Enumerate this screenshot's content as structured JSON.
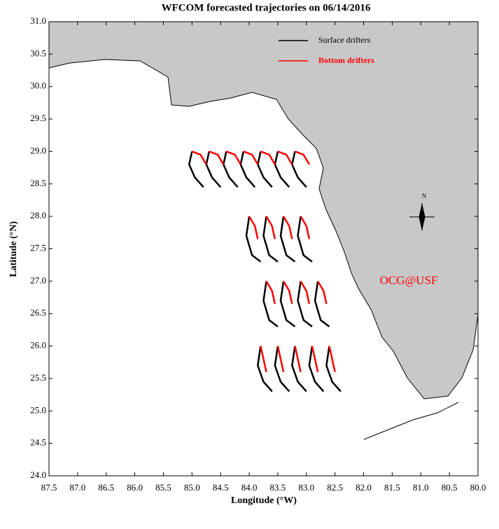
{
  "chart_data": {
    "type": "trajectory",
    "title": "WFCOM forecasted trajectories on 06/14/2016",
    "x_label": "Longitude (°W)",
    "y_label": "Latitude (°N)",
    "annotations": [
      "OCG@USF",
      "N"
    ],
    "xlim": [
      87.5,
      80.0
    ],
    "ylim": [
      24.0,
      31.0
    ],
    "xticks": [
      87.5,
      {
        "value": 87,
        "label": "87.0"
      },
      86.5,
      {
        "value": 86,
        "label": "86.0"
      },
      85.5,
      {
        "value": 85,
        "label": "85.0"
      },
      84.5,
      {
        "value": 84,
        "label": "84.0"
      },
      83.5,
      {
        "value": 83,
        "label": "83.0"
      },
      82.5,
      {
        "value": 82,
        "label": "82.0"
      },
      81.5,
      {
        "value": 81,
        "label": "81.0"
      },
      80.5,
      {
        "value": 80,
        "label": "80.0"
      }
    ],
    "yticks": [
      {
        "value": 24,
        "label": "24.0"
      },
      24.5,
      {
        "value": 25,
        "label": "25.0"
      },
      25.5,
      {
        "value": 26,
        "label": "26.0"
      },
      26.5,
      {
        "value": 27,
        "label": "27.0"
      },
      27.5,
      {
        "value": 28,
        "label": "28.0"
      },
      28.5,
      {
        "value": 29,
        "label": "29.0"
      },
      29.5,
      {
        "value": 30,
        "label": "30.0"
      },
      30.5,
      {
        "value": 31,
        "label": "31.0"
      }
    ],
    "series": [
      {
        "name": "Surface drifters",
        "color": "#000000",
        "tracks": [
          {
            "x": [
              85.0,
              85.05,
              84.95,
              84.8
            ],
            "y": [
              29.0,
              28.8,
              28.6,
              28.45
            ]
          },
          {
            "x": [
              84.7,
              84.75,
              84.65,
              84.5
            ],
            "y": [
              29.0,
              28.8,
              28.6,
              28.45
            ]
          },
          {
            "x": [
              84.4,
              84.45,
              84.35,
              84.2
            ],
            "y": [
              29.0,
              28.8,
              28.6,
              28.45
            ]
          },
          {
            "x": [
              84.1,
              84.15,
              84.05,
              83.9
            ],
            "y": [
              29.0,
              28.8,
              28.6,
              28.45
            ]
          },
          {
            "x": [
              83.8,
              83.85,
              83.75,
              83.6
            ],
            "y": [
              29.0,
              28.8,
              28.6,
              28.45
            ]
          },
          {
            "x": [
              83.5,
              83.55,
              83.45,
              83.3
            ],
            "y": [
              29.0,
              28.8,
              28.6,
              28.45
            ]
          },
          {
            "x": [
              83.2,
              83.25,
              83.15,
              83.0
            ],
            "y": [
              29.0,
              28.8,
              28.6,
              28.45
            ]
          },
          {
            "x": [
              84.0,
              84.05,
              83.95,
              83.8
            ],
            "y": [
              28.0,
              27.7,
              27.4,
              27.3
            ]
          },
          {
            "x": [
              83.7,
              83.75,
              83.65,
              83.5
            ],
            "y": [
              28.0,
              27.7,
              27.4,
              27.3
            ]
          },
          {
            "x": [
              83.4,
              83.45,
              83.35,
              83.2
            ],
            "y": [
              28.0,
              27.7,
              27.4,
              27.3
            ]
          },
          {
            "x": [
              83.1,
              83.15,
              83.05,
              82.9
            ],
            "y": [
              28.0,
              27.7,
              27.4,
              27.3
            ]
          },
          {
            "x": [
              83.7,
              83.75,
              83.65,
              83.5
            ],
            "y": [
              27.0,
              26.7,
              26.4,
              26.3
            ]
          },
          {
            "x": [
              83.4,
              83.45,
              83.35,
              83.2
            ],
            "y": [
              27.0,
              26.7,
              26.4,
              26.3
            ]
          },
          {
            "x": [
              83.1,
              83.15,
              83.05,
              82.9
            ],
            "y": [
              27.0,
              26.7,
              26.4,
              26.3
            ]
          },
          {
            "x": [
              82.8,
              82.85,
              82.75,
              82.6
            ],
            "y": [
              27.0,
              26.7,
              26.4,
              26.3
            ]
          },
          {
            "x": [
              83.8,
              83.85,
              83.75,
              83.6
            ],
            "y": [
              26.0,
              25.7,
              25.45,
              25.3
            ]
          },
          {
            "x": [
              83.5,
              83.55,
              83.45,
              83.3
            ],
            "y": [
              26.0,
              25.7,
              25.45,
              25.3
            ]
          },
          {
            "x": [
              83.2,
              83.25,
              83.15,
              83.0
            ],
            "y": [
              26.0,
              25.7,
              25.45,
              25.3
            ]
          },
          {
            "x": [
              82.9,
              82.95,
              82.85,
              82.7
            ],
            "y": [
              26.0,
              25.7,
              25.45,
              25.3
            ]
          },
          {
            "x": [
              82.6,
              82.65,
              82.55,
              82.4
            ],
            "y": [
              26.0,
              25.7,
              25.45,
              25.3
            ]
          }
        ]
      },
      {
        "name": "Bottom drifters",
        "color": "#ff0000",
        "tracks": [
          {
            "x": [
              85.0,
              84.85,
              84.75
            ],
            "y": [
              29.0,
              28.95,
              28.8
            ]
          },
          {
            "x": [
              84.7,
              84.55,
              84.45
            ],
            "y": [
              29.0,
              28.95,
              28.8
            ]
          },
          {
            "x": [
              84.4,
              84.25,
              84.15
            ],
            "y": [
              29.0,
              28.95,
              28.8
            ]
          },
          {
            "x": [
              84.1,
              83.95,
              83.85
            ],
            "y": [
              29.0,
              28.95,
              28.8
            ]
          },
          {
            "x": [
              83.8,
              83.65,
              83.55
            ],
            "y": [
              29.0,
              28.95,
              28.8
            ]
          },
          {
            "x": [
              83.5,
              83.35,
              83.25
            ],
            "y": [
              29.0,
              28.95,
              28.8
            ]
          },
          {
            "x": [
              83.2,
              83.05,
              82.95
            ],
            "y": [
              29.0,
              28.95,
              28.8
            ]
          },
          {
            "x": [
              84.0,
              83.9,
              83.85
            ],
            "y": [
              28.0,
              27.85,
              27.65
            ]
          },
          {
            "x": [
              83.7,
              83.6,
              83.55
            ],
            "y": [
              28.0,
              27.85,
              27.65
            ]
          },
          {
            "x": [
              83.4,
              83.3,
              83.25
            ],
            "y": [
              28.0,
              27.85,
              27.65
            ]
          },
          {
            "x": [
              83.1,
              83.0,
              82.95
            ],
            "y": [
              28.0,
              27.85,
              27.65
            ]
          },
          {
            "x": [
              83.7,
              83.6,
              83.55
            ],
            "y": [
              27.0,
              26.85,
              26.65
            ]
          },
          {
            "x": [
              83.4,
              83.3,
              83.25
            ],
            "y": [
              27.0,
              26.85,
              26.65
            ]
          },
          {
            "x": [
              83.1,
              83.0,
              82.95
            ],
            "y": [
              27.0,
              26.85,
              26.65
            ]
          },
          {
            "x": [
              82.8,
              82.7,
              82.65
            ],
            "y": [
              27.0,
              26.85,
              26.65
            ]
          },
          {
            "x": [
              83.8,
              83.75,
              83.7
            ],
            "y": [
              26.0,
              25.8,
              25.6
            ]
          },
          {
            "x": [
              83.5,
              83.45,
              83.4
            ],
            "y": [
              26.0,
              25.8,
              25.6
            ]
          },
          {
            "x": [
              83.2,
              83.15,
              83.1
            ],
            "y": [
              26.0,
              25.8,
              25.6
            ]
          },
          {
            "x": [
              82.9,
              82.85,
              82.8
            ],
            "y": [
              26.0,
              25.8,
              25.6
            ]
          },
          {
            "x": [
              82.6,
              82.55,
              82.5
            ],
            "y": [
              26.0,
              25.8,
              25.6
            ]
          }
        ]
      }
    ]
  }
}
